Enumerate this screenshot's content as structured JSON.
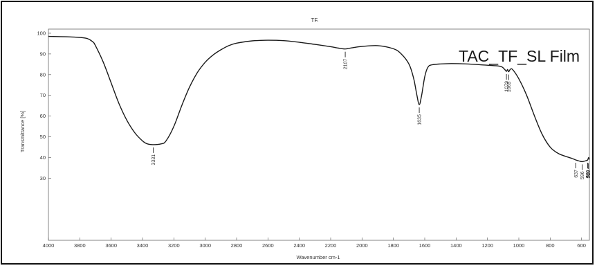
{
  "chart_data": {
    "type": "line",
    "title": "TF.",
    "overlay_label": "TAC_TF_SL Film",
    "xlabel": "Wavenumber cm-1",
    "ylabel": "Transmittance [%]",
    "x_reversed": true,
    "xlim": [
      4000,
      550
    ],
    "ylim": [
      0,
      102
    ],
    "x_ticks": [
      4000,
      3800,
      3600,
      3400,
      3200,
      3000,
      2800,
      2600,
      2400,
      2200,
      2000,
      1800,
      1600,
      1400,
      1200,
      1000,
      800,
      600
    ],
    "y_ticks": [
      30,
      40,
      50,
      60,
      70,
      80,
      90,
      100
    ],
    "grid": false,
    "series": [
      {
        "color": "#1a1a1a",
        "points": [
          [
            4000,
            98.5
          ],
          [
            3850,
            98.2
          ],
          [
            3760,
            97.6
          ],
          [
            3720,
            96
          ],
          [
            3700,
            94
          ],
          [
            3650,
            86
          ],
          [
            3600,
            76
          ],
          [
            3550,
            66
          ],
          [
            3500,
            58
          ],
          [
            3450,
            52
          ],
          [
            3400,
            48
          ],
          [
            3370,
            46.6
          ],
          [
            3331,
            46.2
          ],
          [
            3280,
            46.6
          ],
          [
            3250,
            48
          ],
          [
            3200,
            55
          ],
          [
            3150,
            65
          ],
          [
            3100,
            74
          ],
          [
            3050,
            81
          ],
          [
            3000,
            86
          ],
          [
            2950,
            89.5
          ],
          [
            2900,
            92
          ],
          [
            2850,
            94
          ],
          [
            2800,
            95.2
          ],
          [
            2700,
            96.3
          ],
          [
            2600,
            96.6
          ],
          [
            2500,
            96.4
          ],
          [
            2400,
            95.6
          ],
          [
            2300,
            94.6
          ],
          [
            2200,
            93.5
          ],
          [
            2150,
            92.8
          ],
          [
            2107,
            92.4
          ],
          [
            2060,
            93
          ],
          [
            2000,
            93.6
          ],
          [
            1900,
            94
          ],
          [
            1800,
            92.5
          ],
          [
            1750,
            90
          ],
          [
            1700,
            85
          ],
          [
            1670,
            78
          ],
          [
            1650,
            70
          ],
          [
            1635,
            65.5
          ],
          [
            1620,
            70
          ],
          [
            1600,
            79
          ],
          [
            1580,
            83.5
          ],
          [
            1550,
            84.8
          ],
          [
            1450,
            85.3
          ],
          [
            1350,
            85.2
          ],
          [
            1250,
            84.8
          ],
          [
            1150,
            84.3
          ],
          [
            1110,
            83.8
          ],
          [
            1090,
            82.5
          ],
          [
            1079,
            81.6
          ],
          [
            1072,
            82.5
          ],
          [
            1065,
            81.4
          ],
          [
            1055,
            82.5
          ],
          [
            1040,
            82.5
          ],
          [
            1000,
            78
          ],
          [
            950,
            70
          ],
          [
            900,
            60
          ],
          [
            850,
            51
          ],
          [
            800,
            45
          ],
          [
            750,
            42
          ],
          [
            700,
            40.5
          ],
          [
            660,
            39.5
          ],
          [
            637,
            38.8
          ],
          [
            615,
            38.3
          ],
          [
            596,
            38
          ],
          [
            570,
            38.5
          ],
          [
            561,
            38.8
          ],
          [
            555,
            40
          ],
          [
            550,
            39
          ]
        ]
      }
    ],
    "annotations": [
      {
        "x": 3331,
        "y": 46.2,
        "label": "3331"
      },
      {
        "x": 2107,
        "y": 92.4,
        "label": "2107"
      },
      {
        "x": 1635,
        "y": 65.5,
        "label": "1635"
      },
      {
        "x": 1079,
        "y": 81.6,
        "label": "1079"
      },
      {
        "x": 1065,
        "y": 81.4,
        "label": "1065"
      },
      {
        "x": 637,
        "y": 38.8,
        "label": "637"
      },
      {
        "x": 596,
        "y": 38,
        "label": "596"
      },
      {
        "x": 561,
        "y": 38.8,
        "label": "561"
      },
      {
        "x": 559,
        "y": 38.6,
        "label": "539"
      },
      {
        "x": 557,
        "y": 38.5,
        "label": "510"
      }
    ]
  }
}
